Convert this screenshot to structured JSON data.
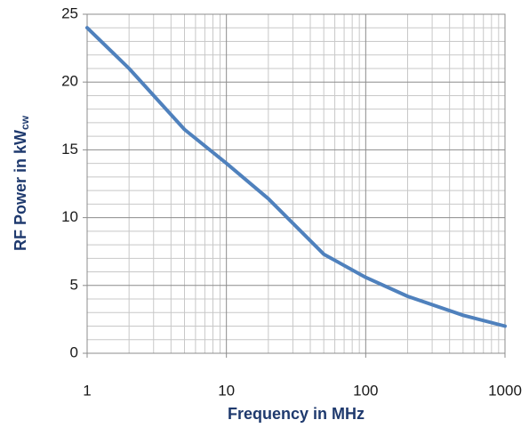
{
  "chart_data": {
    "type": "line",
    "xlabel": "Frequency in MHz",
    "ylabel": {
      "text": "RF Power in kW",
      "subscript": "cw"
    },
    "x": [
      1,
      2,
      5,
      10,
      20,
      50,
      100,
      200,
      500,
      1000
    ],
    "series": [
      {
        "name": "RF Power",
        "color": "#4f81bd",
        "values": [
          24,
          21,
          16.5,
          14,
          11.4,
          7.3,
          5.6,
          4.2,
          2.8,
          2.0
        ]
      }
    ],
    "xscale": "log",
    "xlim": [
      1,
      1000
    ],
    "xticks": [
      1,
      10,
      100,
      1000
    ],
    "xminorticks": [
      2,
      3,
      4,
      5,
      6,
      7,
      8,
      9,
      20,
      30,
      40,
      50,
      60,
      70,
      80,
      90,
      200,
      300,
      400,
      500,
      600,
      700,
      800,
      900
    ],
    "ylim": [
      0,
      25
    ],
    "yticks": [
      0,
      5,
      10,
      15,
      20,
      25
    ],
    "yminorticks": [
      1,
      2,
      3,
      4,
      6,
      7,
      8,
      9,
      11,
      12,
      13,
      14,
      16,
      17,
      18,
      19,
      21,
      22,
      23,
      24
    ],
    "grid": true
  }
}
